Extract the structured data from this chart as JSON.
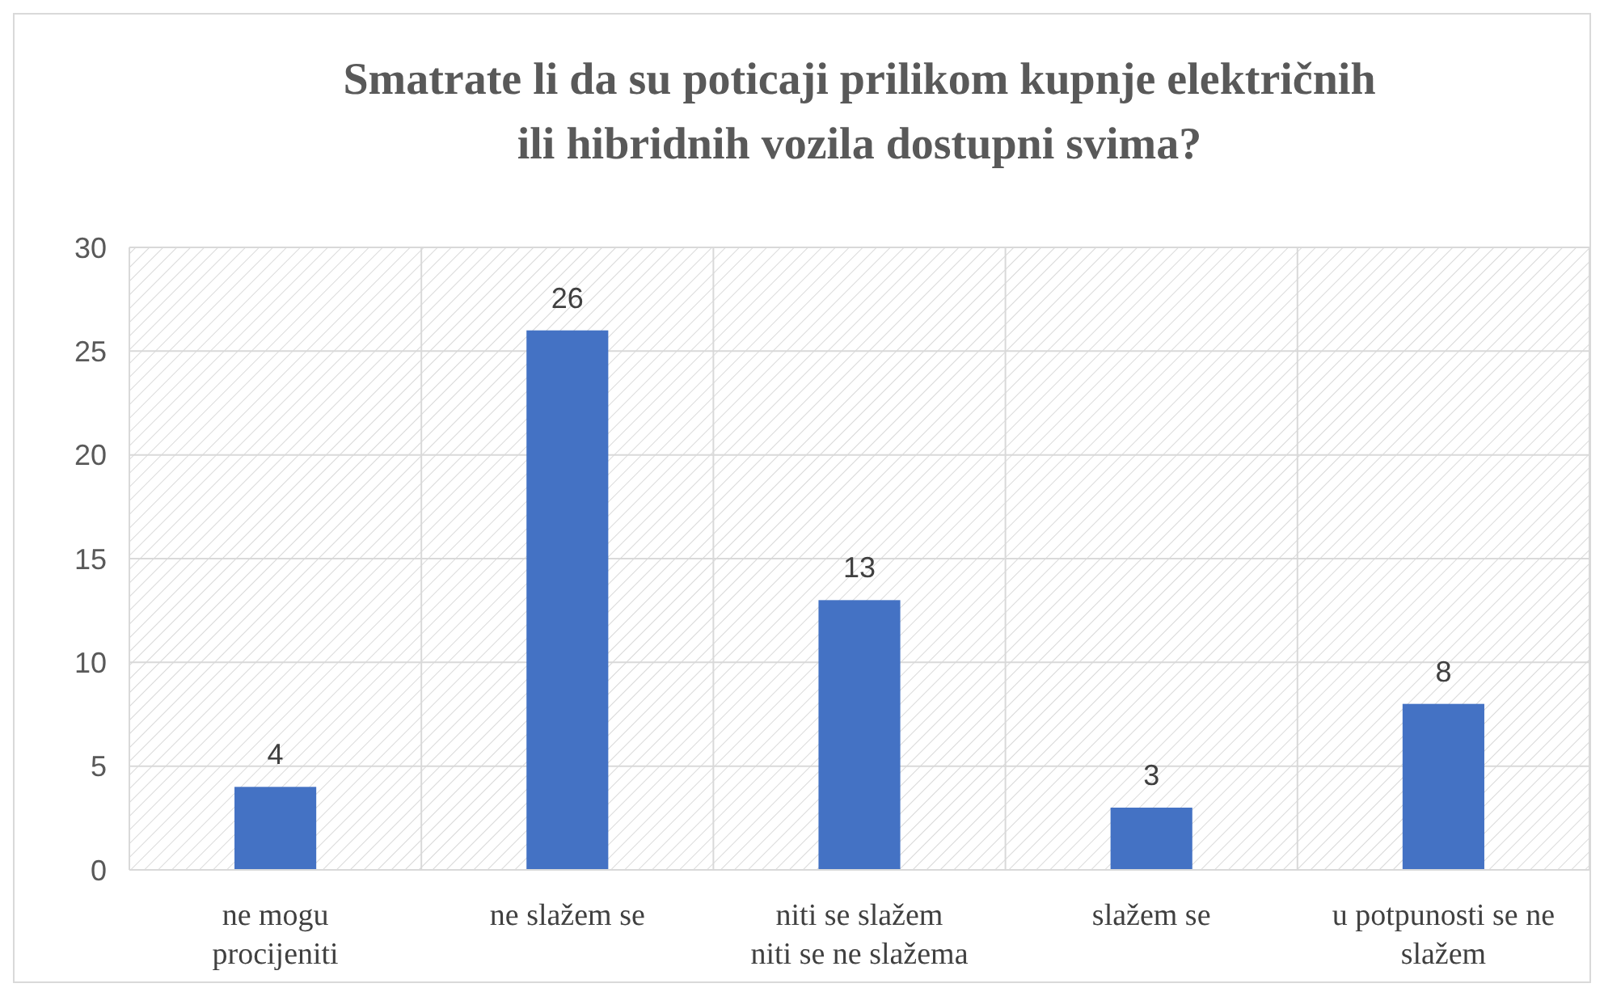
{
  "chart_data": {
    "type": "bar",
    "title": "Smatrate li da su poticaji  prilikom kupnje električnih ili hibridnih vozila dostupni svima?",
    "categories": [
      "ne mogu procijeniti",
      "ne slažem se",
      "niti se slažem niti se ne slažema",
      "slažem se",
      "u potpunosti se ne slažem"
    ],
    "values": [
      4,
      26,
      13,
      3,
      8
    ],
    "color": "#4472c4",
    "ylim": [
      0,
      30
    ],
    "yticks": [
      0,
      5,
      10,
      15,
      20,
      25,
      30
    ],
    "grid": true,
    "data_labels": true
  }
}
